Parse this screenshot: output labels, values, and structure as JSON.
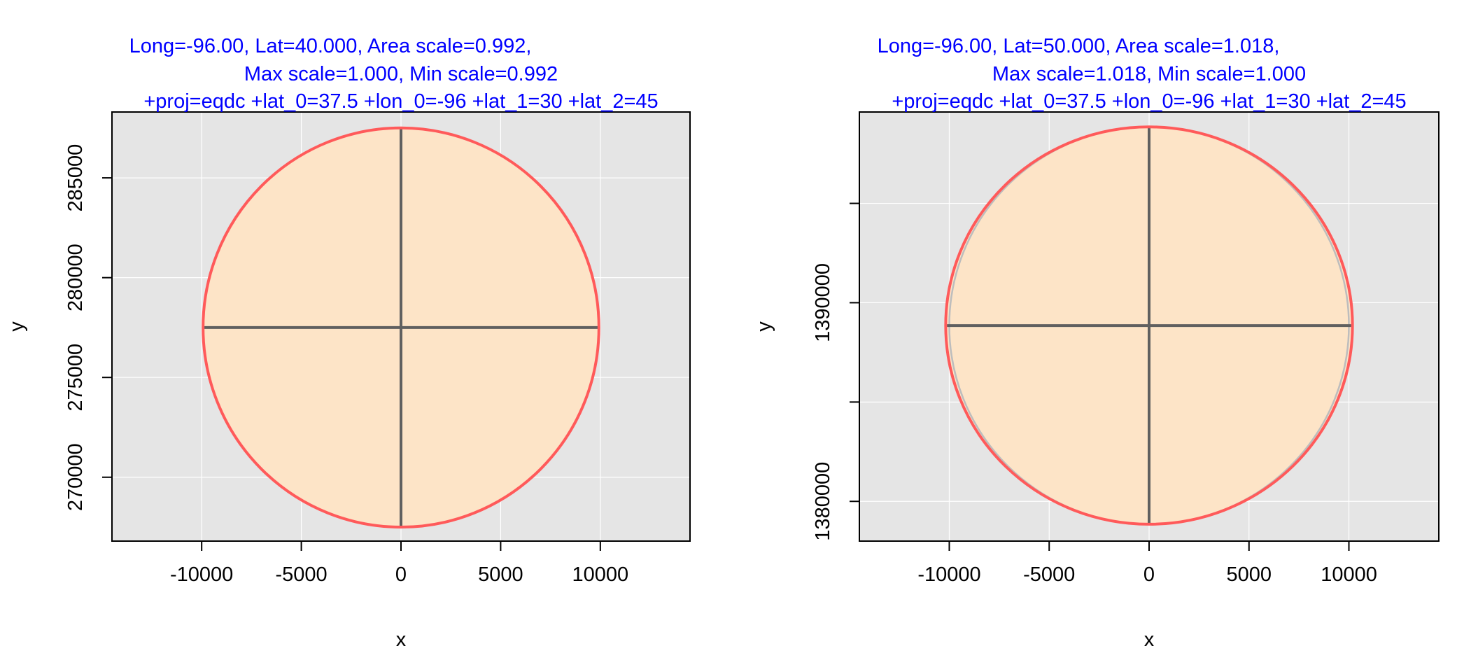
{
  "colors": {
    "panel_background": "#e5e5e5",
    "grid": "#ffffff",
    "circle_fill": "#fde4c7",
    "circle_outline": "#ff5a5a",
    "reference_circle": "#bdbdbd",
    "cross_lines": "#606060",
    "title_text": "#0000ff",
    "axis": "#000000"
  },
  "chart_data": [
    {
      "type": "scatter",
      "title_lines": [
        "Long=-96.00, Lat=40.000, Area scale=0.992,",
        "Max scale=1.000, Min scale=0.992",
        "+proj=eqdc +lat_0=37.5 +lon_0=-96 +lat_1=30 +lat_2=45"
      ],
      "xlabel": "x",
      "ylabel": "y",
      "xlim": [
        -14500,
        14500
      ],
      "ylim": [
        266800,
        288300
      ],
      "x_ticks": [
        -10000,
        -5000,
        0,
        5000,
        10000
      ],
      "x_tick_labels": [
        "-10000",
        "-5000",
        "0",
        "5000",
        "10000"
      ],
      "y_ticks": [
        270000,
        275000,
        280000,
        285000
      ],
      "y_tick_labels": [
        "270000",
        "275000",
        "280000",
        "285000"
      ],
      "grid": true,
      "indicatrix": {
        "center": [
          0,
          277500
        ],
        "semi_x": 9930,
        "semi_y": 10000,
        "reference_semi_x": 9930,
        "reference_semi_y": 10000
      }
    },
    {
      "type": "scatter",
      "title_lines": [
        "Long=-96.00, Lat=50.000, Area scale=1.018,",
        "Max scale=1.018, Min scale=1.000",
        "+proj=eqdc +lat_0=37.5 +lon_0=-96 +lat_1=30 +lat_2=45"
      ],
      "xlabel": "x",
      "ylabel": "y",
      "xlim": [
        -14500,
        14500
      ],
      "ylim": [
        1378000,
        1399600
      ],
      "x_ticks": [
        -10000,
        -5000,
        0,
        5000,
        10000
      ],
      "x_tick_labels": [
        "-10000",
        "-5000",
        "0",
        "5000",
        "10000"
      ],
      "y_ticks": [
        1380000,
        1385000,
        1390000,
        1395000
      ],
      "y_tick_labels": [
        "1380000",
        "",
        "1390000",
        ""
      ],
      "grid": true,
      "indicatrix": {
        "center": [
          0,
          1388850
        ],
        "semi_x": 10180,
        "semi_y": 10000,
        "reference_semi_x": 10000,
        "reference_semi_y": 10000
      }
    }
  ]
}
